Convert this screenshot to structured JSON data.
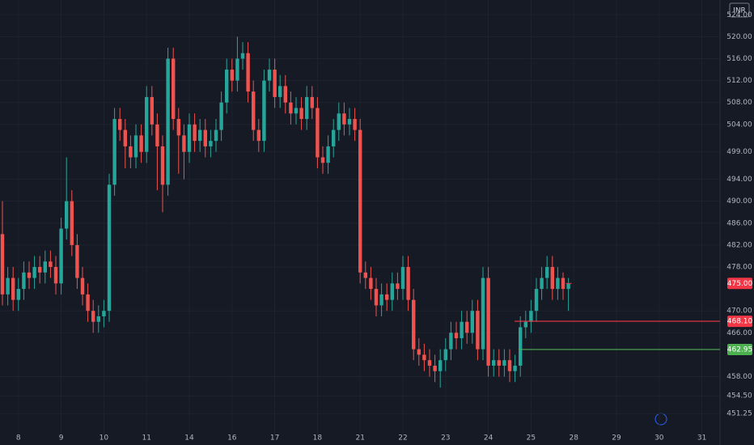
{
  "chart_data": {
    "type": "candlestick",
    "currency": "INR",
    "categories": [
      null,
      null,
      null,
      "8",
      null,
      null,
      null,
      null,
      null,
      null,
      null,
      "9",
      null,
      null,
      null,
      null,
      null,
      null,
      null,
      "10",
      null,
      null,
      null,
      null,
      null,
      null,
      null,
      "11",
      null,
      null,
      null,
      null,
      null,
      null,
      null,
      "14",
      null,
      null,
      null,
      null,
      null,
      null,
      null,
      "16",
      null,
      null,
      null,
      null,
      null,
      null,
      null,
      "17",
      null,
      null,
      null,
      null,
      null,
      null,
      null,
      "18",
      null,
      null,
      null,
      null,
      null,
      null,
      null,
      "21",
      null,
      null,
      null,
      null,
      null,
      null,
      null,
      "22",
      null,
      null,
      null,
      null,
      null,
      null,
      null,
      "23",
      null,
      null,
      null,
      null,
      null,
      null,
      null,
      "24",
      null,
      null,
      null,
      null,
      null,
      null,
      null,
      "25",
      null,
      null,
      null,
      null,
      null,
      null,
      null,
      "28",
      null,
      null,
      null,
      null,
      null,
      null,
      null,
      "29",
      null,
      null,
      null,
      null,
      null,
      null,
      null,
      "30",
      null,
      null,
      null,
      null,
      null,
      null,
      null,
      "31"
    ],
    "open": [
      484,
      473,
      476,
      472,
      474,
      477,
      476,
      478,
      477,
      479,
      478,
      475,
      485,
      490,
      482,
      476,
      473,
      470,
      468,
      469,
      470,
      493,
      505,
      503,
      500,
      498,
      502,
      499,
      509,
      504,
      500,
      493,
      516,
      505,
      502,
      499,
      504,
      501,
      503,
      500,
      501,
      503,
      508,
      514,
      512,
      516,
      517,
      510,
      503,
      501,
      512,
      514,
      509,
      511,
      508,
      506,
      507,
      505,
      509,
      507,
      498,
      497,
      500,
      503,
      506,
      504,
      505,
      503,
      477,
      476,
      474,
      471,
      473,
      472,
      475,
      474,
      478,
      472,
      463,
      462,
      461,
      460,
      459,
      461,
      463,
      466,
      465,
      468,
      466,
      470,
      463,
      476,
      460,
      461,
      460,
      461,
      459,
      460,
      467,
      468,
      470,
      474,
      476,
      478,
      474,
      476,
      474,
      null,
      null,
      null,
      null,
      null,
      null,
      null,
      null,
      null,
      null,
      null,
      null,
      null,
      null,
      null,
      null,
      null,
      null,
      null,
      null,
      null,
      null,
      null,
      null,
      null
    ],
    "high": [
      490,
      478,
      478,
      476,
      479,
      479,
      480,
      480,
      481,
      481,
      480,
      487,
      498,
      492,
      484,
      478,
      475,
      472,
      471,
      472,
      495,
      507,
      507,
      505,
      502,
      504,
      504,
      511,
      511,
      506,
      502,
      518,
      518,
      507,
      504,
      506,
      506,
      505,
      505,
      503,
      505,
      510,
      516,
      516,
      520,
      519,
      519,
      512,
      505,
      514,
      516,
      516,
      513,
      513,
      510,
      509,
      509,
      511,
      511,
      509,
      500,
      502,
      505,
      508,
      508,
      507,
      507,
      505,
      479,
      478,
      476,
      475,
      475,
      477,
      477,
      480,
      480,
      474,
      465,
      464,
      463,
      462,
      463,
      465,
      468,
      468,
      470,
      470,
      472,
      472,
      478,
      478,
      463,
      463,
      463,
      463,
      462,
      469,
      470,
      472,
      476,
      478,
      480,
      480,
      478,
      477,
      476,
      null,
      null,
      null,
      null,
      null,
      null,
      null,
      null,
      null,
      null,
      null,
      null,
      null,
      null,
      null,
      null,
      null,
      null,
      null,
      null,
      null,
      null,
      null,
      null,
      null
    ],
    "low": [
      471,
      471,
      470,
      470,
      472,
      474,
      474,
      475,
      475,
      476,
      473,
      473,
      483,
      480,
      474,
      471,
      468,
      466,
      466,
      467,
      468,
      491,
      501,
      496,
      496,
      496,
      497,
      497,
      502,
      492,
      488,
      491,
      503,
      495,
      494,
      497,
      499,
      499,
      498,
      498,
      499,
      501,
      506,
      510,
      510,
      514,
      508,
      501,
      499,
      499,
      510,
      507,
      507,
      506,
      504,
      504,
      503,
      503,
      505,
      496,
      495,
      495,
      498,
      501,
      502,
      502,
      501,
      475,
      474,
      472,
      469,
      469,
      470,
      470,
      472,
      472,
      470,
      461,
      460,
      459,
      458,
      457,
      456,
      459,
      461,
      463,
      463,
      464,
      464,
      461,
      461,
      458,
      458,
      458,
      458,
      457,
      457,
      458,
      465,
      466,
      468,
      472,
      474,
      472,
      472,
      472,
      470,
      null,
      null,
      null,
      null,
      null,
      null,
      null,
      null,
      null,
      null,
      null,
      null,
      null,
      null,
      null,
      null,
      null,
      null,
      null,
      null,
      null,
      null,
      null,
      null,
      null
    ],
    "close": [
      473,
      476,
      472,
      474,
      477,
      476,
      478,
      477,
      479,
      478,
      475,
      485,
      490,
      482,
      476,
      473,
      470,
      468,
      469,
      470,
      493,
      505,
      503,
      500,
      498,
      502,
      499,
      509,
      504,
      500,
      493,
      516,
      505,
      502,
      499,
      504,
      501,
      503,
      500,
      501,
      503,
      508,
      514,
      512,
      516,
      517,
      510,
      503,
      501,
      512,
      514,
      509,
      511,
      508,
      506,
      507,
      505,
      509,
      507,
      498,
      497,
      500,
      503,
      506,
      504,
      505,
      503,
      477,
      476,
      474,
      471,
      473,
      472,
      475,
      474,
      478,
      472,
      463,
      462,
      461,
      460,
      459,
      461,
      463,
      466,
      465,
      468,
      466,
      470,
      463,
      476,
      460,
      461,
      460,
      461,
      459,
      460,
      467,
      468,
      470,
      474,
      476,
      478,
      474,
      476,
      474,
      475,
      null,
      null,
      null,
      null,
      null,
      null,
      null,
      null,
      null,
      null,
      null,
      null,
      null,
      null,
      null,
      null,
      null,
      null,
      null,
      null,
      null,
      null,
      null,
      null,
      null
    ],
    "up_color": "#26a69a",
    "down_color": "#ef5350",
    "ylim": [
      447.3,
      526.7
    ],
    "yticks": [
      {
        "value": 524,
        "label": "524.00"
      },
      {
        "value": 520,
        "label": "520.00"
      },
      {
        "value": 516,
        "label": "516.00"
      },
      {
        "value": 512,
        "label": "512.00"
      },
      {
        "value": 508,
        "label": "508.00"
      },
      {
        "value": 504,
        "label": "504.00"
      },
      {
        "value": 499,
        "label": "499.00"
      },
      {
        "value": 494,
        "label": "494.00"
      },
      {
        "value": 490,
        "label": "490.00"
      },
      {
        "value": 486,
        "label": "486.00"
      },
      {
        "value": 482,
        "label": "482.00"
      },
      {
        "value": 478,
        "label": "478.00"
      },
      {
        "value": 470,
        "label": "470.00"
      },
      {
        "value": 466,
        "label": "466.00"
      },
      {
        "value": 458,
        "label": "458.00"
      },
      {
        "value": 454.5,
        "label": "454.50"
      },
      {
        "value": 451.25,
        "label": "451.25"
      }
    ],
    "grid": true,
    "last_price": {
      "value": 475,
      "label": "475.00",
      "color": "#f23645"
    },
    "price_lines": [
      {
        "value": 468.1,
        "label": "468.10",
        "color": "#f23645"
      },
      {
        "value": 462.95,
        "label": "462.95",
        "color": "#4caf50"
      }
    ]
  }
}
